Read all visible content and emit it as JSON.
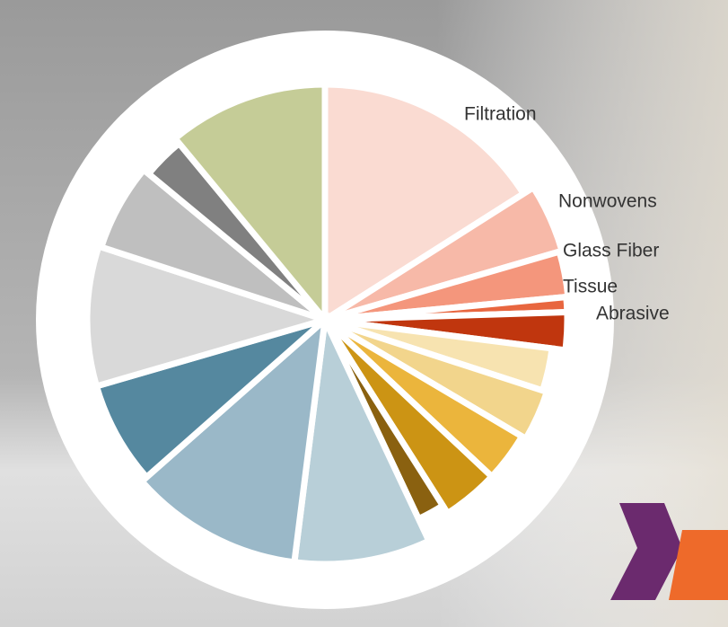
{
  "chart_data": {
    "type": "pie",
    "categories": [
      "Filtration",
      "Nonwovens",
      "Glass Fiber",
      "Tissue",
      "Abrasive",
      null,
      null,
      null,
      null,
      null,
      null,
      null,
      null,
      null,
      null,
      null,
      null
    ],
    "values": [
      16,
      4.5,
      3,
      1,
      2.5,
      3,
      3.5,
      3.5,
      4,
      2,
      9,
      11.5,
      7,
      9.5,
      6,
      3,
      11
    ],
    "radii": [
      262,
      275,
      272,
      270,
      270,
      255,
      260,
      255,
      255,
      245,
      272,
      272,
      265,
      265,
      262,
      255,
      262
    ],
    "rlim": [
      0,
      300
    ],
    "colors": [
      "#fadbd2",
      "#f7b9a8",
      "#f4967c",
      "#e8663f",
      "#c0360e",
      "#f7e3b0",
      "#f2d58c",
      "#ebb53c",
      "#cc9414",
      "#8a6110",
      "#b8cfd8",
      "#9ab8c8",
      "#55889f",
      "#d9d9d9",
      "#bfbfbf",
      "#808080",
      "#c5cc97"
    ]
  }
}
